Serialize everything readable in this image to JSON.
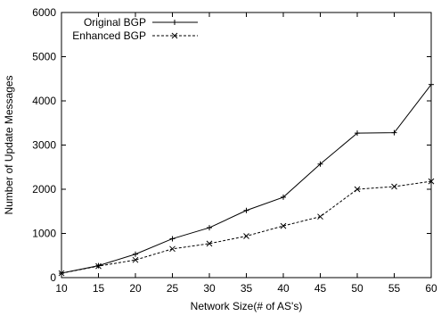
{
  "chart_data": {
    "type": "line",
    "title": "",
    "xlabel": "Network Size(# of AS's)",
    "ylabel": "Number of Update Messages",
    "xlim": [
      10,
      60
    ],
    "ylim": [
      0,
      6000
    ],
    "xticks": [
      10,
      15,
      20,
      25,
      30,
      35,
      40,
      45,
      50,
      55,
      60
    ],
    "yticks": [
      0,
      1000,
      2000,
      3000,
      4000,
      5000,
      6000
    ],
    "grid": false,
    "legend_position": "top-left",
    "series": [
      {
        "name": "Original BGP",
        "line_style": "solid",
        "marker": "plus",
        "color": "#000000",
        "x": [
          10,
          15,
          20,
          25,
          30,
          35,
          40,
          45,
          50,
          55,
          60
        ],
        "y": [
          100,
          270,
          530,
          880,
          1130,
          1520,
          1820,
          2570,
          3270,
          3280,
          4370
        ]
      },
      {
        "name": "Enhanced BGP",
        "line_style": "dashed",
        "marker": "x",
        "color": "#000000",
        "x": [
          10,
          15,
          20,
          25,
          30,
          35,
          40,
          45,
          50,
          55,
          60
        ],
        "y": [
          100,
          260,
          400,
          650,
          770,
          940,
          1170,
          1380,
          2000,
          2060,
          2180
        ]
      }
    ]
  }
}
